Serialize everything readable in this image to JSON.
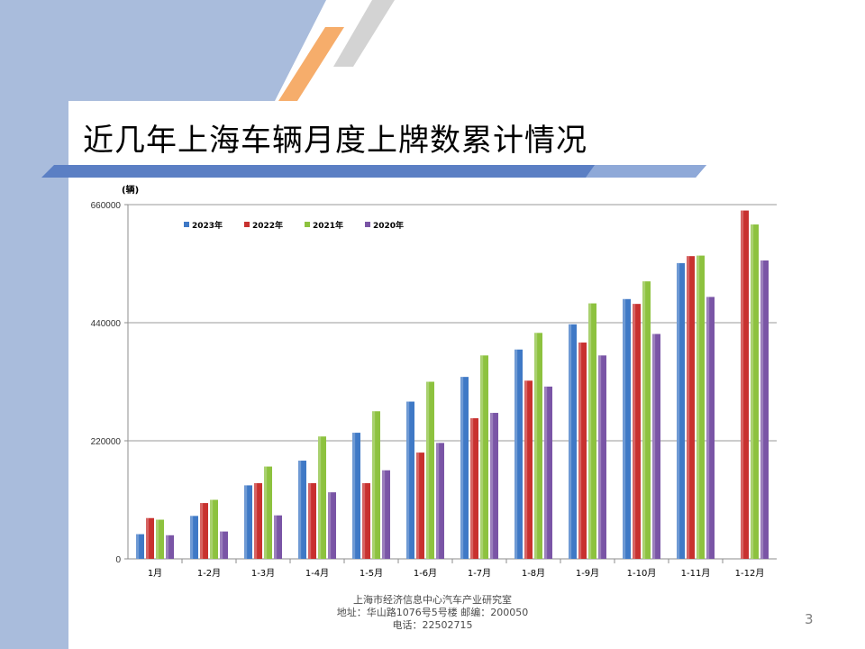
{
  "slide": {
    "title": "近几年上海车辆月度上牌数累计情况",
    "footer_line1": "上海市经济信息中心汽车产业研究室",
    "footer_line2": "地址：华山路1076号5号楼   邮编：200050",
    "footer_line3": "电话：22502715",
    "page_number": "3"
  },
  "colors": {
    "left_band": "#a9bcdc",
    "accent_orange": "#f6ad6b",
    "accent_gray": "#d3d3d3",
    "title_bar": "#5b7fc4",
    "series_2023": "#3f79c6",
    "series_2022": "#c8312f",
    "series_2021": "#8dc23f",
    "series_2020": "#7a55a6"
  },
  "chart_data": {
    "type": "bar",
    "ylabel": "(辆)",
    "ylim": [
      0,
      660000
    ],
    "yticks": [
      "0",
      "220000",
      "440000",
      "660000"
    ],
    "grid": true,
    "legend_position": "top-left",
    "categories": [
      "1月",
      "1-2月",
      "1-3月",
      "1-4月",
      "1-5月",
      "1-6月",
      "1-7月",
      "1-8月",
      "1-9月",
      "1-10月",
      "1-11月",
      "1-12月"
    ],
    "series": [
      {
        "name": "2023年",
        "color": "#3f79c6",
        "values": [
          46000,
          80000,
          137000,
          183000,
          235000,
          293000,
          339000,
          390000,
          437000,
          484000,
          551000,
          null
        ]
      },
      {
        "name": "2022年",
        "color": "#c8312f",
        "values": [
          76000,
          104000,
          141000,
          141000,
          141000,
          198000,
          262000,
          332000,
          403000,
          475000,
          564000,
          649000
        ]
      },
      {
        "name": "2021年",
        "color": "#8dc23f",
        "values": [
          73000,
          110000,
          172000,
          228000,
          275000,
          330000,
          379000,
          421000,
          476000,
          517000,
          565000,
          623000
        ]
      },
      {
        "name": "2020年",
        "color": "#7a55a6",
        "values": [
          44000,
          51000,
          81000,
          124000,
          165000,
          216000,
          272000,
          321000,
          379000,
          419000,
          488000,
          556000
        ]
      }
    ]
  }
}
